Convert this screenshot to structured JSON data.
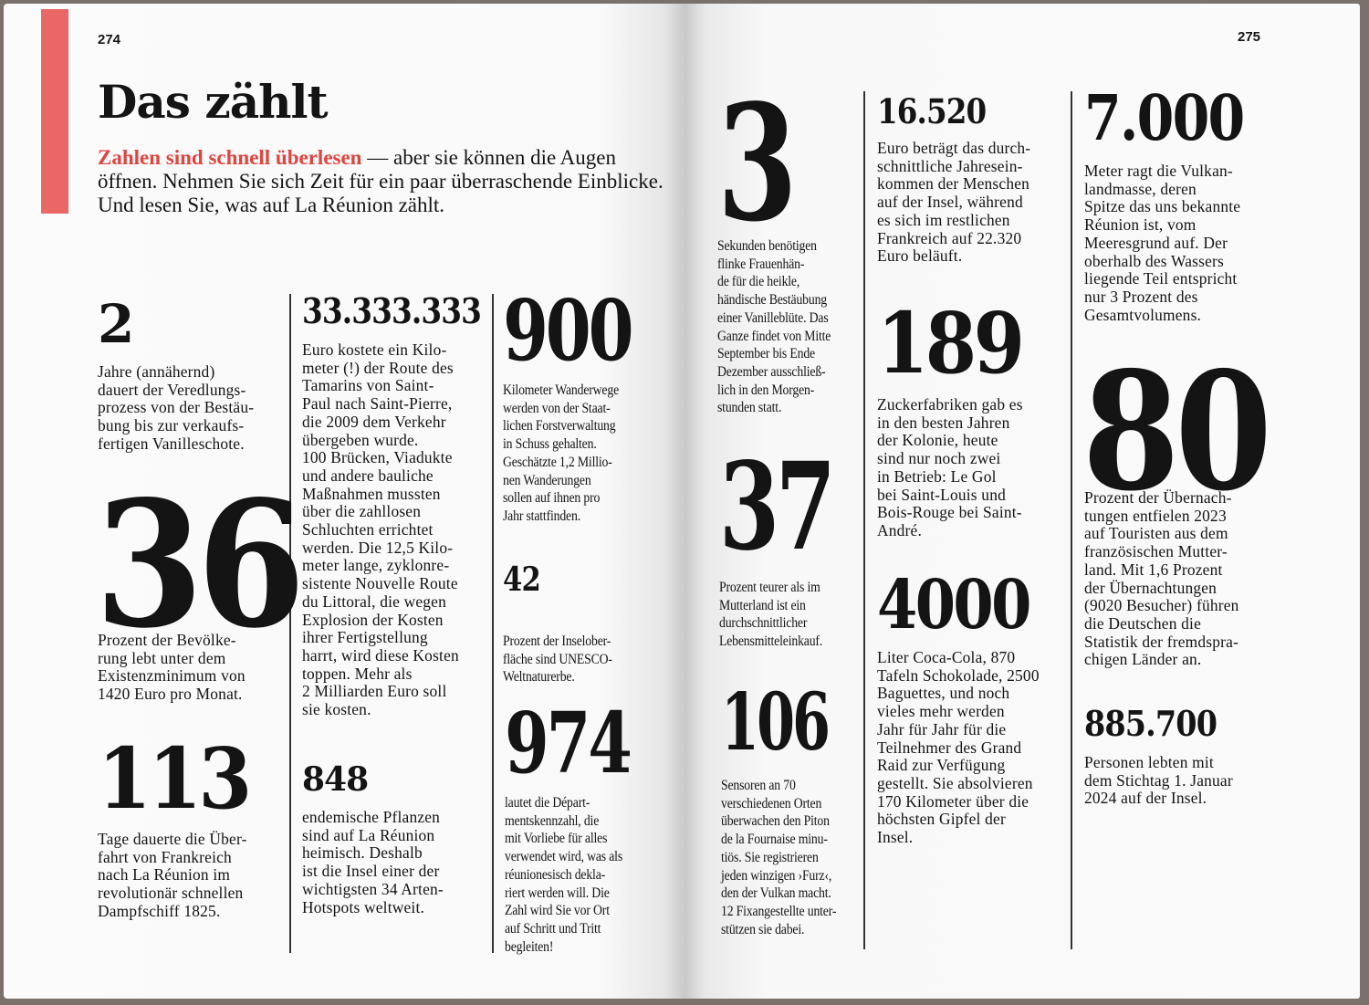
{
  "left_page": {
    "page_number": "274",
    "title": "Das zählt",
    "intro_lead": "Zahlen sind schnell überlesen",
    "intro_rest": " — aber sie können die Augen öffnen. Nehmen Sie sich Zeit für ein paar überraschende Einblicke. Und lesen Sie, was auf La Réunion zählt.",
    "facts": [
      {
        "number": "2",
        "text": "Jahre (annähernd)\ndauert der Veredlungs-\nprozess von der Bestäu-\nbung bis zur verkaufs-\nfertigen Vanilleschote."
      },
      {
        "number": "36",
        "text": "Prozent der Bevölke-\nrung lebt unter dem\nExistenzminimum von\n1420 Euro pro Monat."
      },
      {
        "number": "113",
        "text": "Tage dauerte die Über-\nfahrt von Frankreich\nnach La Réunion im\nrevolutionär schnellen\nDampfschiff 1825."
      },
      {
        "number": "33.333.333",
        "text": "Euro kostete ein Kilo-\nmeter (!) der Route des\nTamarins von Saint-\nPaul nach Saint-Pierre,\ndie 2009 dem Verkehr\nübergeben wurde.\n100 Brücken, Viadukte\nund andere bauliche\nMaßnahmen mussten\nüber die zahllosen\nSchluchten errichtet\nwerden. Die 12,5 Kilo-\nmeter lange, zyklonre-\nsistente Nouvelle Route\ndu Littoral, die wegen\nExplosion der Kosten\nihrer Fertigstellung\nharrt, wird diese Kosten\ntoppen. Mehr als\n2 Milliarden Euro soll\nsie kosten."
      },
      {
        "number": "848",
        "text": "endemische Pflanzen\nsind auf La Réunion\nheimisch. Deshalb\nist die Insel einer der\nwichtigsten 34 Arten-\nHotspots weltweit."
      },
      {
        "number": "900",
        "text": "Kilometer Wanderwege\nwerden von der Staat-\nlichen Forstverwaltung\nin Schuss gehalten.\nGeschätzte 1,2 Millio-\nnen Wanderungen\nsollen auf ihnen pro\nJahr stattfinden."
      },
      {
        "number": "42",
        "text": "Prozent der Inselober-\nfläche sind UNESCO-\nWeltnaturerbe."
      },
      {
        "number": "974",
        "text": "lautet die Départ-\nmentskennzahl, die\nmit Vorliebe für alles\nverwendet wird, was als\nréunionesisch dekla-\nriert werden will. Die\nZahl wird Sie vor Ort\nauf Schritt und Tritt\nbegleiten!"
      }
    ]
  },
  "right_page": {
    "page_number": "275",
    "facts": [
      {
        "number": "3",
        "text": "Sekunden benötigen\nflinke Frauenhän-\nde für die heikle,\nhändische Bestäubung\neiner Vanilleblüte. Das\nGanze findet von Mitte\nSeptember bis Ende\nDezember ausschließ-\nlich in den Morgen-\nstunden statt."
      },
      {
        "number": "37",
        "text": "Prozent teurer als im\nMutterland ist ein\ndurchschnittlicher\nLebensmitteleinkauf."
      },
      {
        "number": "106",
        "text": "Sensoren an 70\nverschiedenen Orten\nüberwachen den Piton\nde la Fournaise minu-\ntiös. Sie registrieren\njeden winzigen ›Furz‹,\nden der Vulkan macht.\n12  Fixangestellte unter-\nstützen sie dabei."
      },
      {
        "number": "16.520",
        "text": "Euro beträgt das durch-\nschnittliche Jahresein-\nkommen der Menschen\nauf der Insel, während\nes sich im restlichen\nFrankreich auf 22.320\nEuro beläuft."
      },
      {
        "number": "189",
        "text": "Zuckerfabriken gab es\nin den besten Jahren\nder Kolonie, heute\nsind nur noch zwei\nin Betrieb: Le Gol\nbei Saint-Louis und\nBois-Rouge bei Saint-\nAndré."
      },
      {
        "number": "4000",
        "text": "Liter Coca-Cola, 870\nTafeln Schokolade, 2500\nBaguettes, und noch\nvieles mehr werden\nJahr für Jahr für die\nTeilnehmer des Grand\nRaid zur Verfügung\ngestellt. Sie absolvieren\n170 Kilometer über die\nhöchsten Gipfel der\nInsel."
      },
      {
        "number": "7.000",
        "text": "Meter ragt die Vulkan-\nlandmasse, deren\nSpitze das uns bekannte\nRéunion ist, vom\nMeeresgrund auf. Der\noberhalb des Wassers\nliegende Teil entspricht\nnur 3 Prozent des\nGesamtvolumens."
      },
      {
        "number": "80",
        "text": "Prozent der Übernach-\ntungen entfielen 2023\nauf Touristen aus dem\nfranzösischen Mutter-\nland. Mit 1,6 Prozent\nder Übernachtungen\n(9020 Besucher) führen\ndie Deutschen die\nStatistik der fremdspra-\nchigen Länder an."
      },
      {
        "number": "885.700",
        "text": "Personen lebten mit\ndem Stichtag 1. Januar\n2024 auf der Insel."
      }
    ]
  },
  "colors": {
    "accent": "#e0443f",
    "bar": "#e96764",
    "cover": "#7b716c"
  }
}
